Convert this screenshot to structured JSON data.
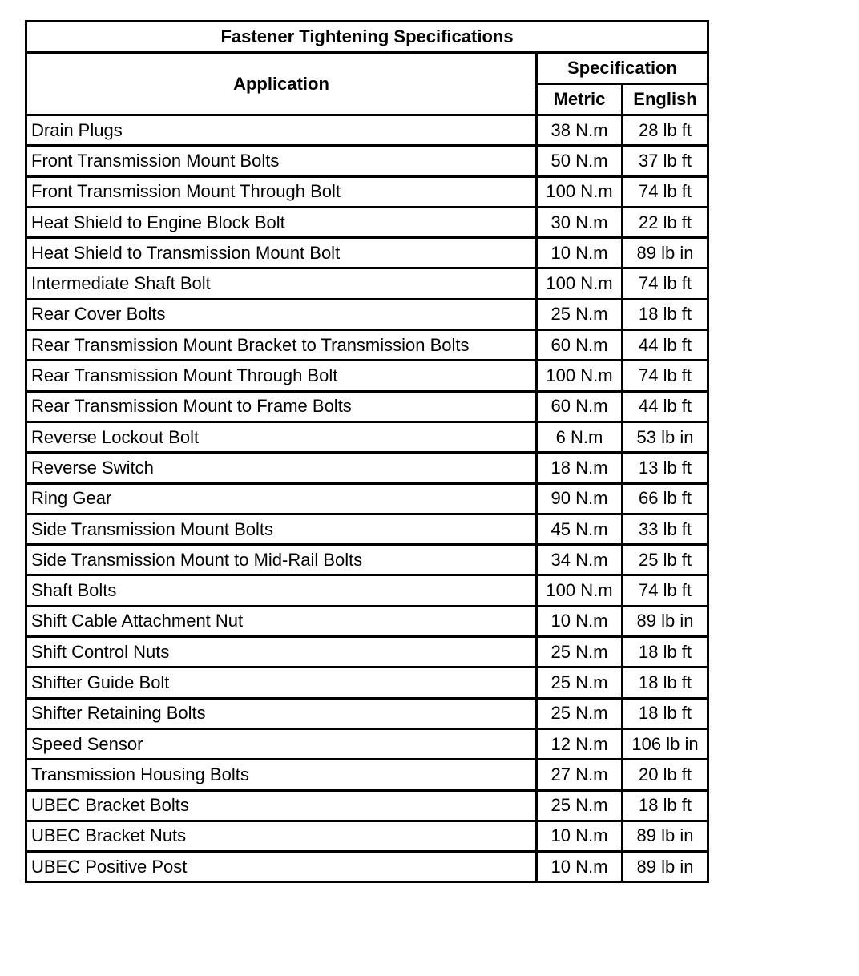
{
  "table": {
    "title": "Fastener Tightening Specifications",
    "headers": {
      "application": "Application",
      "specification": "Specification",
      "metric": "Metric",
      "english": "English"
    },
    "rows": [
      {
        "application": "Drain Plugs",
        "metric": "38 N.m",
        "english": "28 lb ft"
      },
      {
        "application": "Front Transmission Mount Bolts",
        "metric": "50 N.m",
        "english": "37 lb ft"
      },
      {
        "application": "Front Transmission Mount Through Bolt",
        "metric": "100 N.m",
        "english": "74 lb ft"
      },
      {
        "application": "Heat Shield to Engine Block Bolt",
        "metric": "30 N.m",
        "english": "22 lb ft"
      },
      {
        "application": "Heat Shield to Transmission Mount Bolt",
        "metric": "10 N.m",
        "english": "89 lb in"
      },
      {
        "application": "Intermediate Shaft Bolt",
        "metric": "100 N.m",
        "english": "74 lb ft"
      },
      {
        "application": "Rear Cover Bolts",
        "metric": "25 N.m",
        "english": "18 lb ft"
      },
      {
        "application": "Rear Transmission Mount Bracket to Transmission Bolts",
        "metric": "60 N.m",
        "english": "44 lb ft"
      },
      {
        "application": "Rear Transmission Mount Through Bolt",
        "metric": "100 N.m",
        "english": "74 lb ft"
      },
      {
        "application": "Rear Transmission Mount to Frame Bolts",
        "metric": "60 N.m",
        "english": "44 lb ft"
      },
      {
        "application": "Reverse Lockout Bolt",
        "metric": "6 N.m",
        "english": "53 lb in"
      },
      {
        "application": "Reverse Switch",
        "metric": "18 N.m",
        "english": "13 lb ft"
      },
      {
        "application": "Ring Gear",
        "metric": "90 N.m",
        "english": "66 lb ft"
      },
      {
        "application": "Side Transmission Mount Bolts",
        "metric": "45 N.m",
        "english": "33 lb ft"
      },
      {
        "application": "Side Transmission Mount to Mid-Rail Bolts",
        "metric": "34 N.m",
        "english": "25 lb ft"
      },
      {
        "application": "Shaft Bolts",
        "metric": "100 N.m",
        "english": "74 lb ft"
      },
      {
        "application": "Shift Cable Attachment Nut",
        "metric": "10 N.m",
        "english": "89 lb in"
      },
      {
        "application": "Shift Control Nuts",
        "metric": "25 N.m",
        "english": "18 lb ft"
      },
      {
        "application": "Shifter Guide Bolt",
        "metric": "25 N.m",
        "english": "18 lb ft"
      },
      {
        "application": "Shifter Retaining Bolts",
        "metric": "25 N.m",
        "english": "18 lb ft"
      },
      {
        "application": "Speed Sensor",
        "metric": "12 N.m",
        "english": "106 lb in"
      },
      {
        "application": "Transmission Housing Bolts",
        "metric": "27 N.m",
        "english": "20 lb ft"
      },
      {
        "application": "UBEC Bracket Bolts",
        "metric": "25 N.m",
        "english": "18 lb ft"
      },
      {
        "application": "UBEC Bracket Nuts",
        "metric": "10 N.m",
        "english": "89 lb in"
      },
      {
        "application": "UBEC Positive Post",
        "metric": "10 N.m",
        "english": "89 lb in"
      }
    ]
  }
}
